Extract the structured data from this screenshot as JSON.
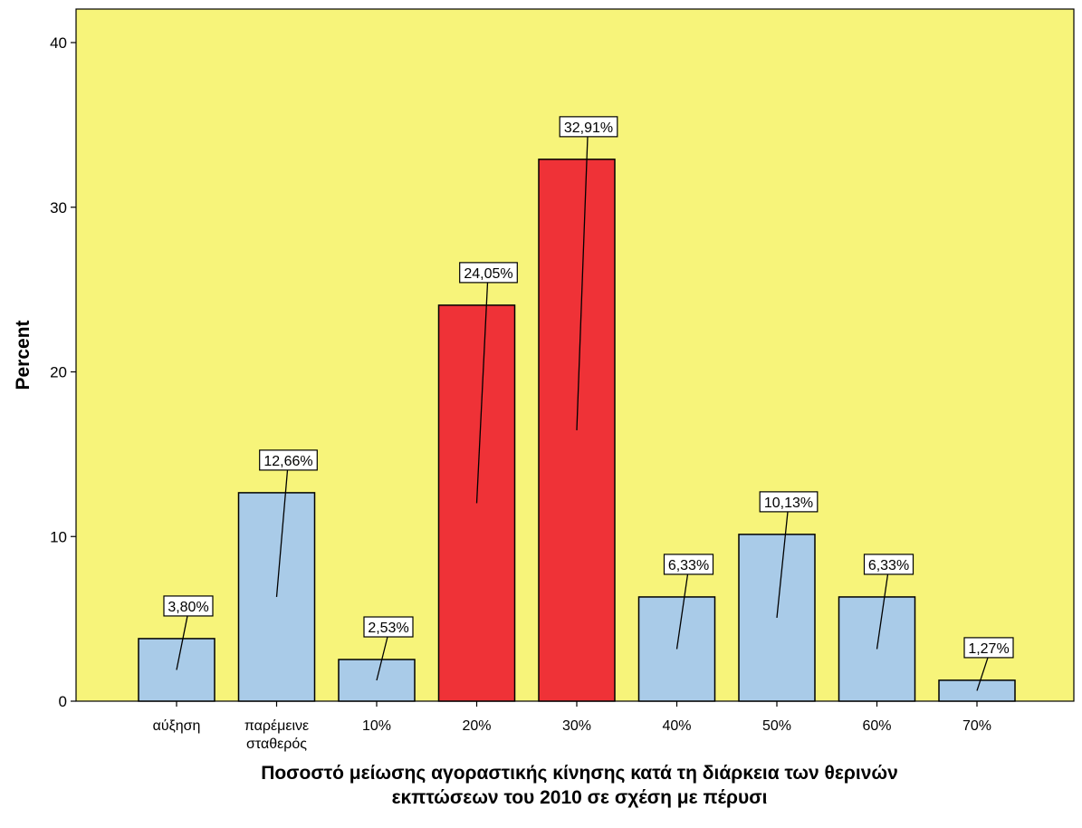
{
  "chart_data": {
    "type": "bar",
    "categories": [
      [
        "αύξηση"
      ],
      [
        "παρέμεινε",
        "σταθερός"
      ],
      [
        "10%"
      ],
      [
        "20%"
      ],
      [
        "30%"
      ],
      [
        "40%"
      ],
      [
        "50%"
      ],
      [
        "60%"
      ],
      [
        "70%"
      ]
    ],
    "values": [
      3.8,
      12.66,
      2.53,
      24.05,
      32.91,
      6.33,
      10.13,
      6.33,
      1.27
    ],
    "data_labels": [
      "3,80%",
      "12,66%",
      "2,53%",
      "24,05%",
      "32,91%",
      "6,33%",
      "10,13%",
      "6,33%",
      "1,27%"
    ],
    "highlighted": [
      false,
      false,
      false,
      true,
      true,
      false,
      false,
      false,
      false
    ],
    "ylabel": "Percent",
    "xlabel_lines": [
      "Ποσοστό μείωσης αγοραστικής κίνησης κατά τη διάρκεια των θερινών",
      "εκπτώσεων του 2010 σε σχέση με πέρυσι"
    ],
    "ylim": [
      0,
      40
    ],
    "yticks": [
      0,
      10,
      20,
      30,
      40
    ],
    "grid": false,
    "colors": {
      "background": "#f7f47a",
      "bar_default": "#a9cbe8",
      "bar_highlight": "#ef3237",
      "outline": "#000000"
    }
  }
}
